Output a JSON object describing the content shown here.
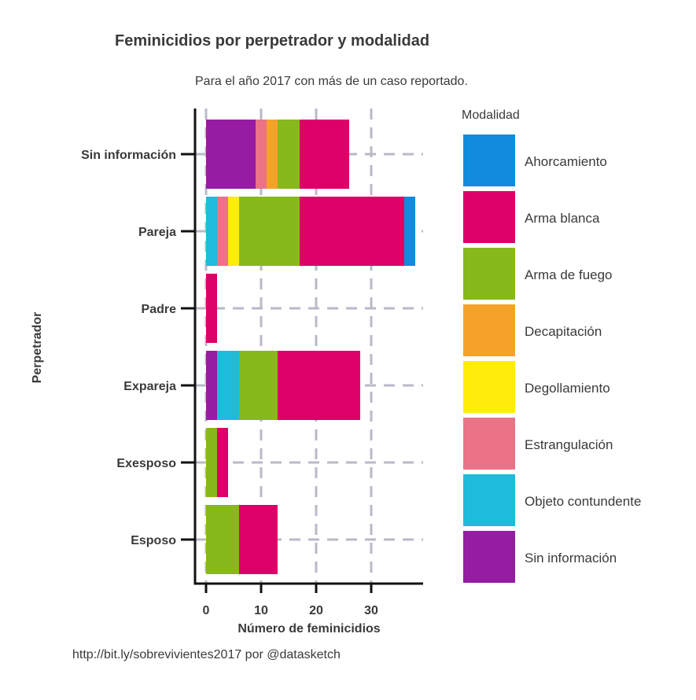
{
  "chart_data": {
    "type": "bar",
    "orientation": "horizontal",
    "stacked": true,
    "title": "Feminicidios por perpetrador y modalidad",
    "subtitle": "Para el año 2017 con más de un caso reportado.",
    "caption": "http://bit.ly/sobrevivientes2017 por @datasketch",
    "xlabel": "Número de feminicidios",
    "ylabel": "Perpetrador",
    "xlim": [
      0,
      39
    ],
    "xticks": [
      0,
      10,
      20,
      30
    ],
    "grid": true,
    "legend": {
      "title": "Modalidad",
      "position": "right"
    },
    "categories": [
      "Sin información",
      "Pareja",
      "Padre",
      "Expareja",
      "Exesposo",
      "Esposo"
    ],
    "series": [
      {
        "name": "Sin información",
        "color": "#951ca3",
        "values": [
          9,
          0,
          0,
          2,
          0,
          0
        ]
      },
      {
        "name": "Objeto contundente",
        "color": "#1fbbdb",
        "values": [
          0,
          2,
          0,
          4,
          0,
          0
        ]
      },
      {
        "name": "Estrangulación",
        "color": "#ec7287",
        "values": [
          2,
          2,
          0,
          0,
          0,
          0
        ]
      },
      {
        "name": "Degollamiento",
        "color": "#ffec0a",
        "values": [
          0,
          2,
          0,
          0,
          0,
          0
        ]
      },
      {
        "name": "Decapitación",
        "color": "#f6a22a",
        "values": [
          2,
          0,
          0,
          0,
          0,
          0
        ]
      },
      {
        "name": "Arma de fuego",
        "color": "#87b81c",
        "values": [
          4,
          11,
          0,
          7,
          2,
          6
        ]
      },
      {
        "name": "Arma blanca",
        "color": "#dd0068",
        "values": [
          9,
          19,
          2,
          15,
          2,
          7
        ]
      },
      {
        "name": "Ahorcamiento",
        "color": "#118bde",
        "values": [
          0,
          2,
          0,
          0,
          0,
          0
        ]
      }
    ],
    "legend_order": [
      "Ahorcamiento",
      "Arma blanca",
      "Arma de fuego",
      "Decapitación",
      "Degollamiento",
      "Estrangulación",
      "Objeto contundente",
      "Sin información"
    ]
  }
}
